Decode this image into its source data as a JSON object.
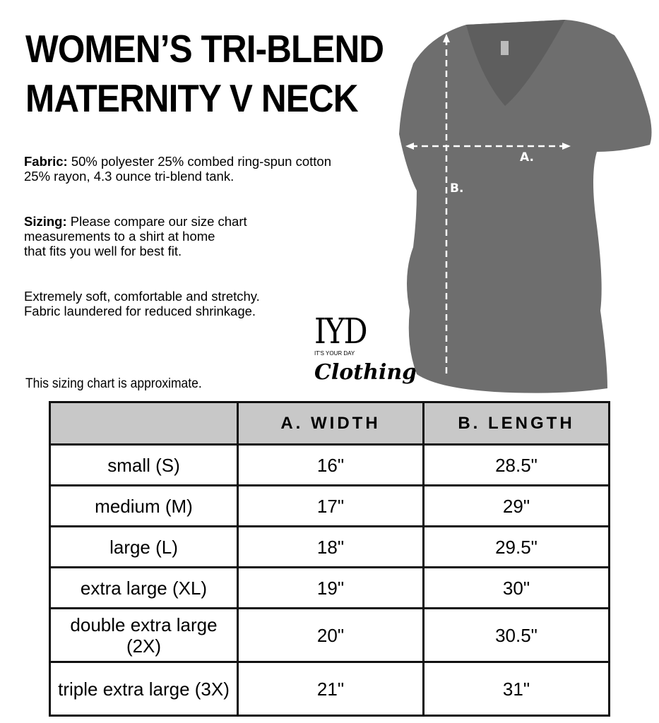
{
  "title_lines": [
    "WOMEN’S TRI-BLEND",
    "MATERNITY V NECK"
  ],
  "fabric": {
    "label": "Fabric:",
    "text_line1": " 50% polyester 25% combed ring-spun cotton",
    "text_line2": "25% rayon, 4.3 ounce tri-blend tank."
  },
  "sizing": {
    "label": "Sizing:",
    "text_line1": " Please compare our size chart",
    "text_line2": "measurements to a shirt at home",
    "text_line3": "that fits you well for best fit."
  },
  "extra": {
    "line1": "Extremely soft, comfortable and stretchy.",
    "line2": "Fabric laundered for reduced shrinkage."
  },
  "logo": {
    "top": "IYD",
    "sub": "IT'S YOUR DAY",
    "script": "Clothing"
  },
  "diagram": {
    "label_a": "A.",
    "label_b": "B.",
    "shirt_color": "#6e6e6e"
  },
  "note": "This sizing chart is approximate.",
  "table": {
    "headers": [
      "",
      "A. WIDTH",
      "B. LENGTH"
    ],
    "rows": [
      {
        "size": "small (S)",
        "width": "16\"",
        "length": "28.5\""
      },
      {
        "size": "medium (M)",
        "width": "17\"",
        "length": "29\""
      },
      {
        "size": "large (L)",
        "width": "18\"",
        "length": "29.5\""
      },
      {
        "size": "extra large (XL)",
        "width": "19\"",
        "length": "30\""
      },
      {
        "size": "double extra large (2X)",
        "width": "20\"",
        "length": "30.5\""
      },
      {
        "size": "triple extra large (3X)",
        "width": "21\"",
        "length": "31\""
      }
    ],
    "header_bg": "#c8c8c8"
  }
}
